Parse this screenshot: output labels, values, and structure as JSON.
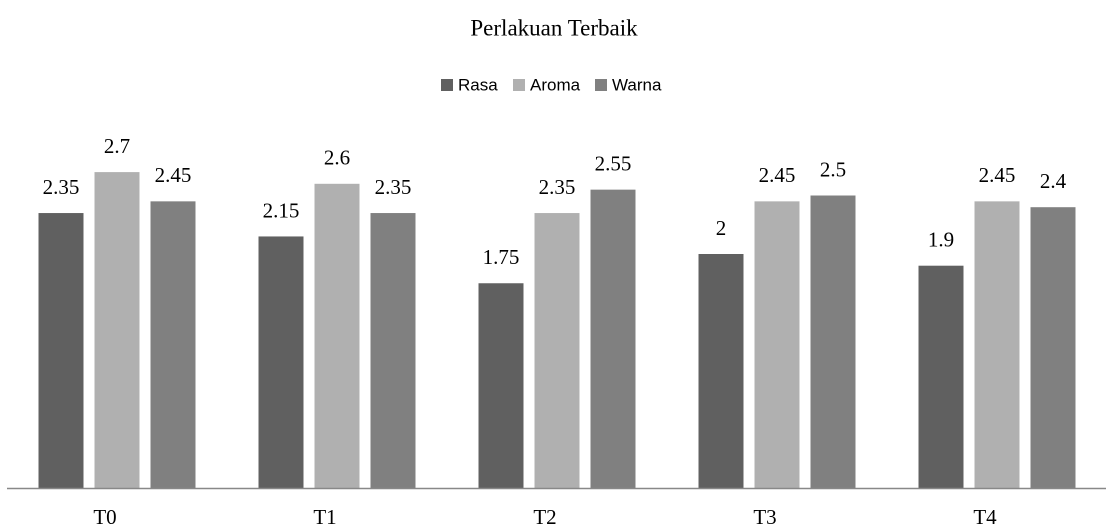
{
  "chart_data": {
    "type": "bar",
    "title": "Perlakuan Terbaik",
    "categories": [
      "T0",
      "T1",
      "T2",
      "T3",
      "T4"
    ],
    "series": [
      {
        "name": "Rasa",
        "color": "#606060",
        "values": [
          2.35,
          2.15,
          1.75,
          2,
          1.9
        ]
      },
      {
        "name": "Aroma",
        "color": "#b0b0b0",
        "values": [
          2.7,
          2.6,
          2.35,
          2.45,
          2.45
        ]
      },
      {
        "name": "Warna",
        "color": "#808080",
        "values": [
          2.45,
          2.35,
          2.55,
          2.5,
          2.4
        ]
      }
    ],
    "legend": "top"
  }
}
